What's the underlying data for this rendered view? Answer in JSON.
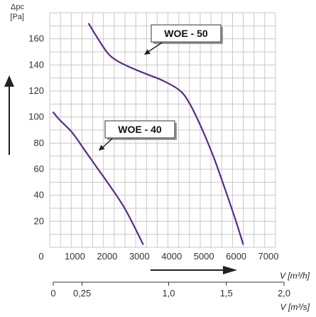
{
  "chart_data": {
    "type": "line",
    "ylabel": "Δpc",
    "yunit": "[Pa]",
    "yticks": [
      20,
      40,
      60,
      80,
      100,
      120,
      140,
      160
    ],
    "ylim": [
      0,
      180
    ],
    "xlabel_m3h": "V [m³/h]",
    "xticks_m3h": [
      "0",
      "1000",
      "2000",
      "3000",
      "4000",
      "5000",
      "6000",
      "7000"
    ],
    "xlim_m3h": [
      0,
      7000
    ],
    "xlabel_m3s": "V [m³/s]",
    "xticks_m3s": [
      {
        "label": "0",
        "value": 0
      },
      {
        "label": "0,25",
        "value": 0.25
      },
      {
        "label": "1,0",
        "value": 1.0
      },
      {
        "label": "1,5",
        "value": 1.5
      },
      {
        "label": "2,0",
        "value": 2.0
      }
    ],
    "grid": true,
    "grid_x_step_m3h": 333.33,
    "grid_y_step": 10,
    "series": [
      {
        "name": "WOE - 50",
        "color": "#5a2a8a",
        "points": [
          [
            1200,
            172
          ],
          [
            1500,
            160
          ],
          [
            1800,
            149
          ],
          [
            2100,
            143
          ],
          [
            2600,
            137
          ],
          [
            3000,
            133
          ],
          [
            3500,
            128
          ],
          [
            4000,
            121
          ],
          [
            4300,
            112
          ],
          [
            4700,
            92
          ],
          [
            5100,
            68
          ],
          [
            5500,
            40
          ],
          [
            5800,
            18
          ],
          [
            6000,
            2
          ]
        ]
      },
      {
        "name": "WOE - 40",
        "color": "#5a2a8a",
        "points": [
          [
            100,
            104
          ],
          [
            300,
            98
          ],
          [
            700,
            88
          ],
          [
            1100,
            74
          ],
          [
            1500,
            60
          ],
          [
            1900,
            46
          ],
          [
            2300,
            31
          ],
          [
            2600,
            17
          ],
          [
            2900,
            2
          ]
        ]
      }
    ],
    "annotations": [
      {
        "text": "WOE - 50",
        "series": 0
      },
      {
        "text": "WOE - 40",
        "series": 1
      }
    ]
  }
}
